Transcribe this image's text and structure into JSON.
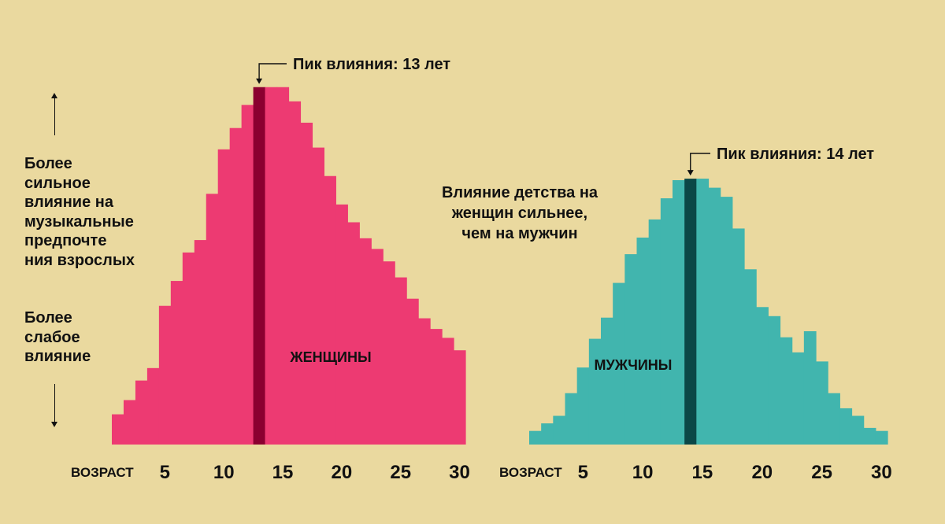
{
  "left_axis": {
    "stronger_label": "Более\nсильное\nвлияние на\nмузыкальные\nпредпочте\nния взрослых",
    "weaker_label": "Более\nслабое\nвлияние"
  },
  "note": "Влияние детства на\nженщин сильнее,\nчем на мужчин",
  "colors": {
    "background": "#ead99f",
    "women_fill": "#ed3a72",
    "women_peak": "#8b0030",
    "men_fill": "#41b5ae",
    "men_peak": "#0b4747"
  },
  "chart_data": [
    {
      "type": "bar",
      "series_label": "ЖЕНЩИНЫ",
      "xlabel": "ВОЗРАСТ",
      "xticks": [
        5,
        10,
        15,
        20,
        25,
        30
      ],
      "x": [
        1,
        2,
        3,
        4,
        5,
        6,
        7,
        8,
        9,
        10,
        11,
        12,
        13,
        14,
        15,
        16,
        17,
        18,
        19,
        20,
        21,
        22,
        23,
        24,
        25,
        26,
        27,
        28,
        29,
        30
      ],
      "values": [
        1.7,
        2.5,
        3.6,
        4.3,
        7.8,
        9.2,
        10.8,
        11.5,
        14.1,
        16.6,
        17.8,
        19.1,
        20.1,
        20.1,
        20.1,
        19.3,
        18.1,
        16.7,
        15.1,
        13.5,
        12.5,
        11.6,
        11.0,
        10.3,
        9.4,
        8.2,
        7.1,
        6.5,
        6.0,
        5.3
      ],
      "peak": {
        "age": 13,
        "label": "Пик влияния: 13 лет"
      }
    },
    {
      "type": "bar",
      "series_label": "МУЖЧИНЫ",
      "xlabel": "ВОЗРАСТ",
      "xticks": [
        5,
        10,
        15,
        20,
        25,
        30
      ],
      "x": [
        1,
        2,
        3,
        4,
        5,
        6,
        7,
        8,
        9,
        10,
        11,
        12,
        13,
        14,
        15,
        16,
        17,
        18,
        19,
        20,
        21,
        22,
        23,
        24,
        25,
        26,
        27,
        28,
        29,
        30
      ],
      "values": [
        0.9,
        1.4,
        1.9,
        3.4,
        5.1,
        7.0,
        8.4,
        10.7,
        12.6,
        13.7,
        14.9,
        16.3,
        17.5,
        17.6,
        17.6,
        17.0,
        16.4,
        14.3,
        11.6,
        9.1,
        8.5,
        7.1,
        6.1,
        7.5,
        5.5,
        3.4,
        2.4,
        1.9,
        1.1,
        0.9
      ],
      "peak": {
        "age": 14,
        "label": "Пик влияния: 14 лет"
      }
    }
  ]
}
